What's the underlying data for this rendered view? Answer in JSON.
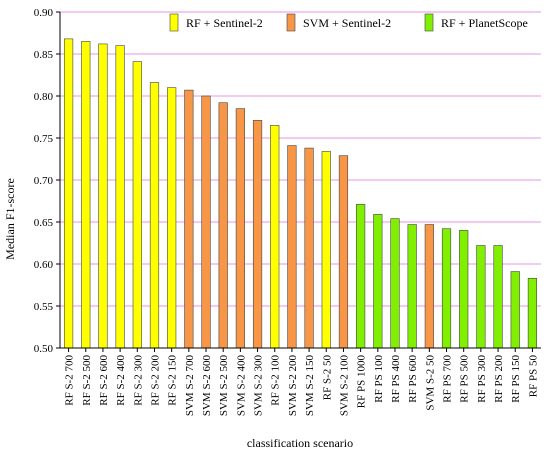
{
  "chart_data": {
    "type": "bar",
    "title": "",
    "xlabel": "classification scenario",
    "ylabel": "Median F1-score",
    "ylim": [
      0.5,
      0.9
    ],
    "yticks": [
      "0.50",
      "0.55",
      "0.60",
      "0.65",
      "0.70",
      "0.75",
      "0.80",
      "0.85",
      "0.90"
    ],
    "grid": true,
    "legend_position": "top-right",
    "legend": [
      {
        "label": "RF + Sentinel-2",
        "color": "#ffff00"
      },
      {
        "label": "SVM + Sentinel-2",
        "color": "#f79646"
      },
      {
        "label": "RF + PlanetScope",
        "color": "#80f000"
      }
    ],
    "categories": [
      "RF  S-2  700",
      "RF  S-2  500",
      "RF  S-2  600",
      "RF  S-2  400",
      "RF  S-2  300",
      "RF  S-2  200",
      "RF  S-2  150",
      "SVM  S-2  700",
      "SVM  S-2  600",
      "SVM  S-2  500",
      "SVM  S-2  400",
      "SVM  S-2  300",
      "RF  S-2  100",
      "SVM  S-2  200",
      "SVM  S-2  150",
      "RF  S-2  50",
      "SVM  S-2  100",
      "RF  PS  1000",
      "RF  PS  100",
      "RF  PS  400",
      "RF  PS  600",
      "SVM  S-2  50",
      "RF  PS  700",
      "RF  PS  500",
      "RF  PS  300",
      "RF  PS  200",
      "RF  PS  150",
      "RF  PS  50"
    ],
    "values": [
      0.868,
      0.865,
      0.862,
      0.86,
      0.841,
      0.816,
      0.81,
      0.807,
      0.8,
      0.792,
      0.785,
      0.771,
      0.765,
      0.741,
      0.738,
      0.734,
      0.729,
      0.671,
      0.659,
      0.654,
      0.647,
      0.647,
      0.642,
      0.64,
      0.622,
      0.622,
      0.591,
      0.583
    ],
    "groups": [
      0,
      0,
      0,
      0,
      0,
      0,
      0,
      1,
      1,
      1,
      1,
      1,
      0,
      1,
      1,
      0,
      1,
      2,
      2,
      2,
      2,
      1,
      2,
      2,
      2,
      2,
      2,
      2
    ]
  }
}
